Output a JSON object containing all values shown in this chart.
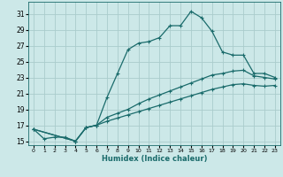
{
  "xlabel": "Humidex (Indice chaleur)",
  "background_color": "#cce8e8",
  "grid_color": "#aacccc",
  "line_color": "#1a6b6b",
  "xlim": [
    -0.5,
    23.5
  ],
  "ylim": [
    14.5,
    32.5
  ],
  "xticks": [
    0,
    1,
    2,
    3,
    4,
    5,
    6,
    7,
    8,
    9,
    10,
    11,
    12,
    13,
    14,
    15,
    16,
    17,
    18,
    19,
    20,
    21,
    22,
    23
  ],
  "yticks": [
    15,
    17,
    19,
    21,
    23,
    25,
    27,
    29,
    31
  ],
  "curve1_x": [
    0,
    1,
    2,
    3,
    4,
    5,
    6,
    7,
    8,
    9,
    10,
    11,
    12,
    13,
    14,
    15,
    16,
    17,
    18,
    19,
    20,
    21,
    22,
    23
  ],
  "curve1_y": [
    16.5,
    15.3,
    15.5,
    15.5,
    15.0,
    16.7,
    17.0,
    20.5,
    23.5,
    26.5,
    27.3,
    27.5,
    28.0,
    29.5,
    29.5,
    31.3,
    30.5,
    28.8,
    26.2,
    25.8,
    25.8,
    23.5,
    23.5,
    23.0
  ],
  "curve2_x": [
    0,
    4,
    5,
    6,
    7,
    8,
    9,
    10,
    11,
    12,
    13,
    14,
    15,
    16,
    17,
    18,
    19,
    20,
    21,
    22,
    23
  ],
  "curve2_y": [
    16.5,
    15.0,
    16.7,
    17.0,
    18.0,
    18.5,
    19.0,
    19.7,
    20.3,
    20.8,
    21.3,
    21.8,
    22.3,
    22.8,
    23.3,
    23.5,
    23.8,
    23.9,
    23.2,
    23.0,
    22.8
  ],
  "curve3_x": [
    0,
    4,
    5,
    6,
    7,
    8,
    9,
    10,
    11,
    12,
    13,
    14,
    15,
    16,
    17,
    18,
    19,
    20,
    21,
    22,
    23
  ],
  "curve3_y": [
    16.5,
    15.0,
    16.7,
    17.0,
    17.5,
    17.9,
    18.3,
    18.7,
    19.1,
    19.5,
    19.9,
    20.3,
    20.7,
    21.1,
    21.5,
    21.8,
    22.1,
    22.2,
    22.0,
    21.9,
    22.0
  ]
}
